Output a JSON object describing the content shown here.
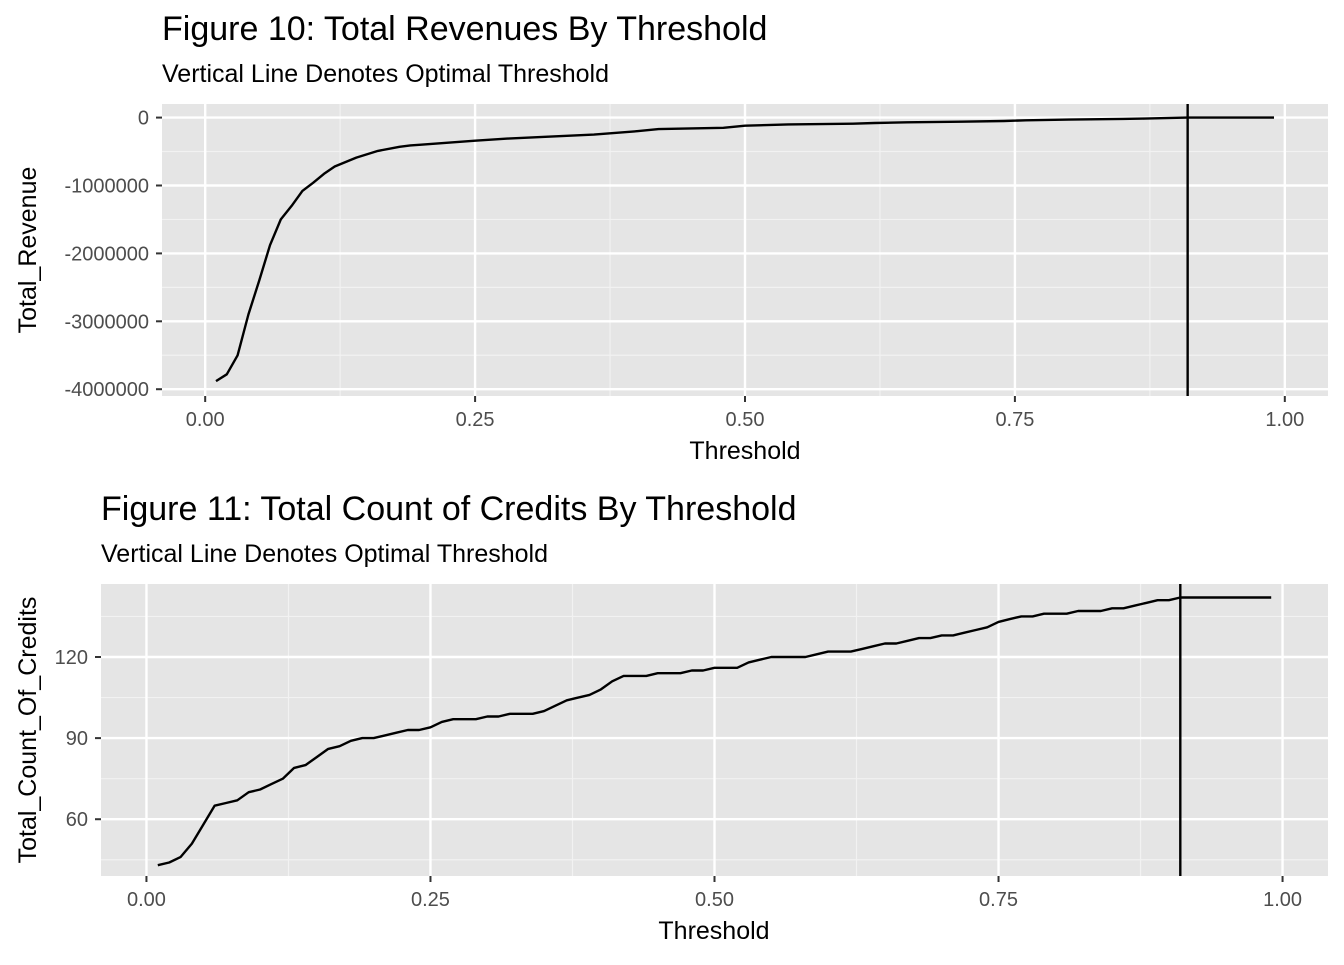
{
  "chart_data": [
    {
      "type": "line",
      "title": "Figure 10: Total Revenues By Threshold",
      "subtitle": "Vertical Line Denotes Optimal Threshold",
      "xlabel": "Threshold",
      "ylabel": "Total_Revenue",
      "xlim": [
        -0.04,
        1.04
      ],
      "ylim": [
        -4100000,
        200000
      ],
      "xticks": [
        0,
        0.25,
        0.5,
        0.75,
        1
      ],
      "xtick_labels": [
        "0.00",
        "0.25",
        "0.50",
        "0.75",
        "1.00"
      ],
      "yticks": [
        0,
        -1000000,
        -2000000,
        -3000000,
        -4000000
      ],
      "ytick_labels": [
        "0",
        "-1000000",
        "-2000000",
        "-3000000",
        "-4000000"
      ],
      "vline": 0.91,
      "grid": true,
      "x": [
        0.01,
        0.02,
        0.03,
        0.04,
        0.05,
        0.06,
        0.07,
        0.08,
        0.09,
        0.1,
        0.11,
        0.12,
        0.14,
        0.16,
        0.18,
        0.19,
        0.2,
        0.25,
        0.28,
        0.32,
        0.36,
        0.4,
        0.42,
        0.45,
        0.48,
        0.5,
        0.52,
        0.54,
        0.6,
        0.62,
        0.65,
        0.7,
        0.74,
        0.76,
        0.8,
        0.85,
        0.87,
        0.88,
        0.91,
        0.95,
        0.99
      ],
      "y": [
        -3880000,
        -3780000,
        -3500000,
        -2900000,
        -2400000,
        -1880000,
        -1500000,
        -1300000,
        -1080000,
        -960000,
        -830000,
        -720000,
        -590000,
        -490000,
        -430000,
        -410000,
        -400000,
        -340000,
        -310000,
        -280000,
        -250000,
        -200000,
        -170000,
        -160000,
        -150000,
        -120000,
        -110000,
        -100000,
        -90000,
        -80000,
        -70000,
        -60000,
        -50000,
        -40000,
        -30000,
        -20000,
        -15000,
        -10000,
        0,
        0,
        0
      ]
    },
    {
      "type": "line",
      "title": "Figure 11: Total Count of Credits By Threshold",
      "subtitle": "Vertical Line Denotes Optimal Threshold",
      "xlabel": "Threshold",
      "ylabel": "Total_Count_Of_Credits",
      "xlim": [
        -0.04,
        1.04
      ],
      "ylim": [
        39,
        147
      ],
      "xticks": [
        0,
        0.25,
        0.5,
        0.75,
        1
      ],
      "xtick_labels": [
        "0.00",
        "0.25",
        "0.50",
        "0.75",
        "1.00"
      ],
      "yticks": [
        60,
        90,
        120
      ],
      "ytick_labels": [
        "60",
        "90",
        "120"
      ],
      "vline": 0.91,
      "grid": true,
      "x": [
        0.01,
        0.02,
        0.03,
        0.04,
        0.05,
        0.06,
        0.07,
        0.08,
        0.09,
        0.1,
        0.11,
        0.12,
        0.13,
        0.14,
        0.15,
        0.16,
        0.17,
        0.18,
        0.19,
        0.2,
        0.21,
        0.22,
        0.23,
        0.24,
        0.25,
        0.26,
        0.27,
        0.28,
        0.29,
        0.3,
        0.31,
        0.32,
        0.33,
        0.34,
        0.35,
        0.36,
        0.37,
        0.38,
        0.39,
        0.4,
        0.41,
        0.42,
        0.43,
        0.44,
        0.45,
        0.46,
        0.47,
        0.48,
        0.49,
        0.5,
        0.51,
        0.52,
        0.53,
        0.54,
        0.55,
        0.56,
        0.57,
        0.58,
        0.59,
        0.6,
        0.61,
        0.62,
        0.63,
        0.64,
        0.65,
        0.66,
        0.67,
        0.68,
        0.69,
        0.7,
        0.71,
        0.72,
        0.73,
        0.74,
        0.75,
        0.76,
        0.77,
        0.78,
        0.79,
        0.8,
        0.81,
        0.82,
        0.83,
        0.84,
        0.85,
        0.86,
        0.87,
        0.88,
        0.89,
        0.9,
        0.91,
        0.95,
        0.99
      ],
      "y": [
        43,
        44,
        46,
        51,
        58,
        65,
        66,
        67,
        70,
        71,
        73,
        75,
        79,
        80,
        83,
        86,
        87,
        89,
        90,
        90,
        91,
        92,
        93,
        93,
        94,
        96,
        97,
        97,
        97,
        98,
        98,
        99,
        99,
        99,
        100,
        102,
        104,
        105,
        106,
        108,
        111,
        113,
        113,
        113,
        114,
        114,
        114,
        115,
        115,
        116,
        116,
        116,
        118,
        119,
        120,
        120,
        120,
        120,
        121,
        122,
        122,
        122,
        123,
        124,
        125,
        125,
        126,
        127,
        127,
        128,
        128,
        129,
        130,
        131,
        133,
        134,
        135,
        135,
        136,
        136,
        136,
        137,
        137,
        137,
        138,
        138,
        139,
        140,
        141,
        141,
        142,
        142,
        142
      ]
    }
  ]
}
